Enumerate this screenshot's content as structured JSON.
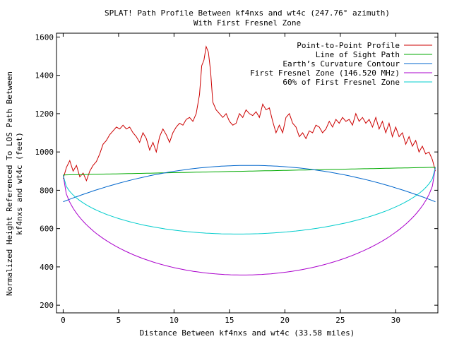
{
  "chart_data": {
    "type": "line",
    "title": "SPLAT! Path Profile Between kf4nxs and wt4c (247.76° azimuth)",
    "subtitle": "With First Fresnel Zone",
    "xlabel": "Distance Between kf4nxs and wt4c (33.58 miles)",
    "ylabel_line1": "Normalized Height Referenced To LOS Path Between",
    "ylabel_line2": "kf4nxs and wt4c (feet)",
    "xlim": [
      -0.6,
      33.8
    ],
    "ylim": [
      160,
      1620
    ],
    "xticks": [
      0,
      5,
      10,
      15,
      20,
      25,
      30
    ],
    "xtick_labels": [
      "0",
      "5",
      "10",
      "15",
      "20",
      "25",
      "30"
    ],
    "yticks": [
      200,
      400,
      600,
      800,
      1000,
      1200,
      1400,
      1600
    ],
    "ytick_labels": [
      "200",
      "400",
      "600",
      "800",
      "1000",
      "1200",
      "1400",
      "1600"
    ],
    "legend_position": "top-right",
    "series": [
      {
        "name": "Point-to-Point Profile",
        "color": "#cc0000",
        "x": [
          0,
          0.3,
          0.6,
          0.9,
          1.2,
          1.5,
          1.8,
          2.1,
          2.4,
          2.7,
          3.0,
          3.3,
          3.6,
          3.9,
          4.2,
          4.5,
          4.8,
          5.1,
          5.4,
          5.7,
          6.0,
          6.3,
          6.6,
          6.9,
          7.2,
          7.5,
          7.8,
          8.1,
          8.4,
          8.7,
          9.0,
          9.3,
          9.6,
          9.9,
          10.2,
          10.5,
          10.8,
          11.1,
          11.4,
          11.7,
          12.0,
          12.3,
          12.5,
          12.7,
          12.9,
          13.1,
          13.3,
          13.5,
          13.8,
          14.1,
          14.4,
          14.7,
          15.0,
          15.3,
          15.6,
          15.9,
          16.2,
          16.5,
          16.8,
          17.1,
          17.4,
          17.7,
          18.0,
          18.3,
          18.6,
          18.9,
          19.2,
          19.5,
          19.8,
          20.1,
          20.4,
          20.7,
          21.0,
          21.3,
          21.6,
          21.9,
          22.2,
          22.5,
          22.8,
          23.1,
          23.4,
          23.7,
          24.0,
          24.3,
          24.6,
          24.9,
          25.2,
          25.5,
          25.8,
          26.1,
          26.4,
          26.7,
          27.0,
          27.3,
          27.6,
          27.9,
          28.2,
          28.5,
          28.8,
          29.1,
          29.4,
          29.7,
          30.0,
          30.3,
          30.6,
          30.9,
          31.2,
          31.5,
          31.8,
          32.1,
          32.4,
          32.7,
          33.0,
          33.3,
          33.58
        ],
        "y": [
          860,
          920,
          955,
          900,
          930,
          870,
          890,
          850,
          900,
          930,
          950,
          990,
          1040,
          1060,
          1090,
          1110,
          1130,
          1120,
          1140,
          1120,
          1130,
          1100,
          1080,
          1050,
          1100,
          1070,
          1010,
          1050,
          1000,
          1080,
          1120,
          1090,
          1050,
          1100,
          1130,
          1150,
          1140,
          1170,
          1180,
          1160,
          1200,
          1300,
          1450,
          1480,
          1550,
          1520,
          1420,
          1260,
          1220,
          1200,
          1180,
          1200,
          1160,
          1140,
          1150,
          1200,
          1180,
          1220,
          1200,
          1190,
          1210,
          1180,
          1250,
          1220,
          1230,
          1160,
          1100,
          1140,
          1100,
          1180,
          1200,
          1150,
          1130,
          1080,
          1100,
          1070,
          1110,
          1100,
          1140,
          1130,
          1100,
          1120,
          1160,
          1130,
          1170,
          1150,
          1180,
          1160,
          1170,
          1140,
          1200,
          1160,
          1180,
          1150,
          1170,
          1130,
          1180,
          1120,
          1160,
          1100,
          1150,
          1080,
          1130,
          1080,
          1100,
          1040,
          1080,
          1030,
          1060,
          1000,
          1030,
          990,
          1000,
          960,
          900
        ]
      },
      {
        "name": "Line of Sight Path",
        "color": "#00aa00",
        "type": "linear",
        "y_start": 880,
        "y_end": 920
      },
      {
        "name": "Earth’s Curvature Contour",
        "color": "#0066cc",
        "type": "arc",
        "y_ends": [
          740,
          740
        ],
        "y_mid": 930
      },
      {
        "name": "First Fresnel Zone (146.520 MHz)",
        "color": "#aa00cc",
        "type": "ellipse",
        "y_ends": [
          880,
          920
        ],
        "y_mid": 358
      },
      {
        "name": "60% of First Fresnel Zone",
        "color": "#00cccc",
        "type": "ellipse",
        "y_ends": [
          880,
          920
        ],
        "y_mid": 572
      }
    ]
  }
}
